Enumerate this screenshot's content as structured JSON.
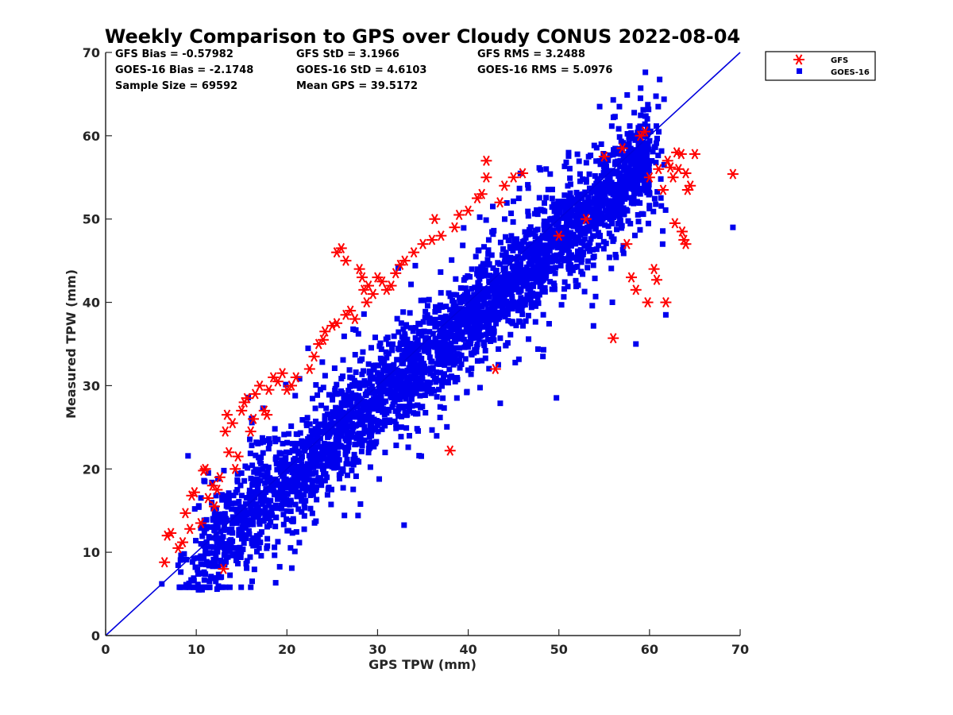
{
  "chart_data": {
    "type": "scatter",
    "title": "Weekly Comparison to GPS over Cloudy CONUS 2022-08-04",
    "xlabel": "GPS TPW (mm)",
    "ylabel": "Measured TPW (mm)",
    "xlim": [
      0,
      70
    ],
    "ylim": [
      0,
      70
    ],
    "xticks": [
      "0",
      "10",
      "20",
      "30",
      "40",
      "50",
      "60",
      "70"
    ],
    "yticks": [
      "0",
      "10",
      "20",
      "30",
      "40",
      "50",
      "60",
      "70"
    ],
    "grid": false,
    "legend_position": "outside-top-right",
    "stats": [
      [
        "GFS Bias = -0.57982",
        "GFS StD = 3.1966",
        "GFS RMS = 3.2488"
      ],
      [
        "GOES-16 Bias = -2.1748",
        "GOES-16 StD = 4.6103",
        "GOES-16 RMS = 5.0976"
      ],
      [
        "Sample Size = 69592",
        "Mean GPS = 39.5172",
        ""
      ]
    ],
    "reference_line": {
      "type": "identity",
      "from": [
        0,
        0
      ],
      "to": [
        70,
        70
      ],
      "color": "#0000dd"
    },
    "series": [
      {
        "name": "GFS",
        "marker": "asterisk",
        "color": "#ff0000",
        "points": [
          [
            6.5,
            8.8
          ],
          [
            6.8,
            12.0
          ],
          [
            7.2,
            12.3
          ],
          [
            8.0,
            10.5
          ],
          [
            8.5,
            11.2
          ],
          [
            8.8,
            14.7
          ],
          [
            9.3,
            12.8
          ],
          [
            9.5,
            16.8
          ],
          [
            9.8,
            17.2
          ],
          [
            10.5,
            13.5
          ],
          [
            10.8,
            19.8
          ],
          [
            11.0,
            20.0
          ],
          [
            11.3,
            16.5
          ],
          [
            11.8,
            18.0
          ],
          [
            12.0,
            15.5
          ],
          [
            12.3,
            17.5
          ],
          [
            12.6,
            19.0
          ],
          [
            13.0,
            8.0
          ],
          [
            13.2,
            24.5
          ],
          [
            13.4,
            26.5
          ],
          [
            13.6,
            22.0
          ],
          [
            14.0,
            25.5
          ],
          [
            14.3,
            20.0
          ],
          [
            14.6,
            21.5
          ],
          [
            15.0,
            27.0
          ],
          [
            15.3,
            28.0
          ],
          [
            15.6,
            28.5
          ],
          [
            16.0,
            24.5
          ],
          [
            16.3,
            26.0
          ],
          [
            16.5,
            29.0
          ],
          [
            17.0,
            30.0
          ],
          [
            17.5,
            27.0
          ],
          [
            17.8,
            26.5
          ],
          [
            18.0,
            29.5
          ],
          [
            18.5,
            31.0
          ],
          [
            19.0,
            30.5
          ],
          [
            19.5,
            31.5
          ],
          [
            20.0,
            29.5
          ],
          [
            20.5,
            30.0
          ],
          [
            21.0,
            31.0
          ],
          [
            22.5,
            32.0
          ],
          [
            23.0,
            33.5
          ],
          [
            23.5,
            35.0
          ],
          [
            24.0,
            35.5
          ],
          [
            24.2,
            36.5
          ],
          [
            25.0,
            37.2
          ],
          [
            25.5,
            37.5
          ],
          [
            25.5,
            46.0
          ],
          [
            26.0,
            46.5
          ],
          [
            26.5,
            45.0
          ],
          [
            26.5,
            38.5
          ],
          [
            27.0,
            39.0
          ],
          [
            27.5,
            38.0
          ],
          [
            28.0,
            44.0
          ],
          [
            28.3,
            43.0
          ],
          [
            28.5,
            41.5
          ],
          [
            28.8,
            40.0
          ],
          [
            29.0,
            42.0
          ],
          [
            29.5,
            41.0
          ],
          [
            30.0,
            43.0
          ],
          [
            30.5,
            42.5
          ],
          [
            31.0,
            41.5
          ],
          [
            31.5,
            42.0
          ],
          [
            32.0,
            43.5
          ],
          [
            32.5,
            44.5
          ],
          [
            33.0,
            45.0
          ],
          [
            34.0,
            46.0
          ],
          [
            35.0,
            47.0
          ],
          [
            36.0,
            47.5
          ],
          [
            36.3,
            50.0
          ],
          [
            37.0,
            48.0
          ],
          [
            38.0,
            22.2
          ],
          [
            38.5,
            49.0
          ],
          [
            39.0,
            50.5
          ],
          [
            40.0,
            51.0
          ],
          [
            41.0,
            52.5
          ],
          [
            41.5,
            53.0
          ],
          [
            42.0,
            57.0
          ],
          [
            42.0,
            55.0
          ],
          [
            43.0,
            32.0
          ],
          [
            43.5,
            52.0
          ],
          [
            44.0,
            54.0
          ],
          [
            45.0,
            55.0
          ],
          [
            46.0,
            55.5
          ],
          [
            50.0,
            48.0
          ],
          [
            53.0,
            50.0
          ],
          [
            55.0,
            57.5
          ],
          [
            56.0,
            35.7
          ],
          [
            57.0,
            58.5
          ],
          [
            57.5,
            47.0
          ],
          [
            58.0,
            43.0
          ],
          [
            58.5,
            41.5
          ],
          [
            59.0,
            60.0
          ],
          [
            59.5,
            60.5
          ],
          [
            59.8,
            40.0
          ],
          [
            60.0,
            55.0
          ],
          [
            60.5,
            44.0
          ],
          [
            60.8,
            42.7
          ],
          [
            61.0,
            56.0
          ],
          [
            61.5,
            53.5
          ],
          [
            61.8,
            40.0
          ],
          [
            62.0,
            57.0
          ],
          [
            62.3,
            56.2
          ],
          [
            62.6,
            55.0
          ],
          [
            62.8,
            49.5
          ],
          [
            63.0,
            58.0
          ],
          [
            63.2,
            56.0
          ],
          [
            63.5,
            57.8
          ],
          [
            63.6,
            48.5
          ],
          [
            63.8,
            47.5
          ],
          [
            64.0,
            47.0
          ],
          [
            64.0,
            55.5
          ],
          [
            64.2,
            53.5
          ],
          [
            64.5,
            54.0
          ],
          [
            65.0,
            57.8
          ],
          [
            69.2,
            55.4
          ]
        ]
      },
      {
        "name": "GOES-16",
        "marker": "square",
        "color": "#0000ee",
        "points": []
      }
    ]
  }
}
